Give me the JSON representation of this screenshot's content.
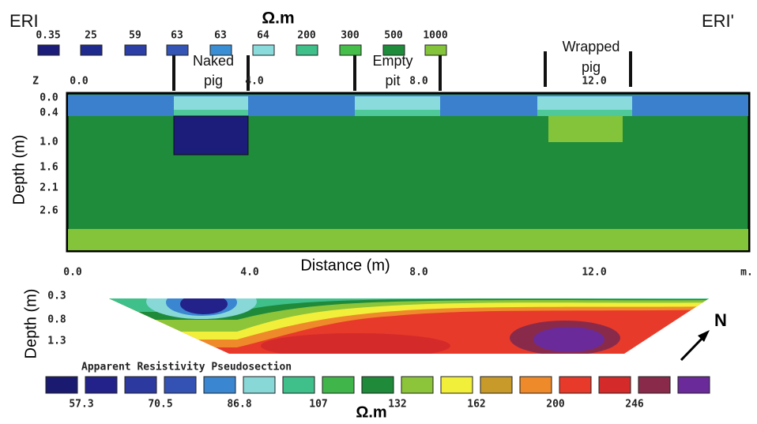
{
  "figure": {
    "left_label": "ERI",
    "right_label": "ERI'",
    "top_unit": "Ω.m",
    "top_legend": {
      "labels": [
        "0.35",
        "25",
        "59",
        "63",
        "63",
        "64",
        "200",
        "300",
        "500",
        "1000"
      ],
      "colors": [
        "#1c1c7a",
        "#1f2a8f",
        "#2b3fa6",
        "#3455b5",
        "#3a8fd4",
        "#8adcdc",
        "#3fbf8a",
        "#46bf4a",
        "#1e8c3a",
        "#84c43a"
      ]
    },
    "annotations": [
      {
        "line1": "Naked",
        "line2": "pig"
      },
      {
        "line1": "Empty",
        "line2": "pit"
      },
      {
        "line1": "Wrapped",
        "line2": "pig"
      }
    ],
    "model": {
      "z_label": "Z",
      "x_labels": [
        "0.0",
        "4.0",
        "8.0",
        "12.0"
      ],
      "depth_labels": [
        "0.0",
        "0.4",
        "1.0",
        "1.6",
        "2.1",
        "2.6"
      ],
      "y_title": "Depth (m)",
      "x_title": "Distance (m)"
    },
    "pseudosection": {
      "x_labels": [
        "0.0",
        "4.0",
        "8.0",
        "12.0"
      ],
      "x_unit": "m.",
      "depth_labels": [
        "0.3",
        "0.8",
        "1.3"
      ],
      "y_title": "Depth (m)",
      "north": "N",
      "title": "Apparent Resistivity Pseudosection",
      "legend_colors": [
        "#1a1a70",
        "#22228a",
        "#2c3aa0",
        "#3352b4",
        "#3a86d0",
        "#88d8d8",
        "#3fbf8a",
        "#3fb54a",
        "#1e8a3a",
        "#8cc43a",
        "#f2ef3a",
        "#c89a2a",
        "#ef8a2a",
        "#e83a2a",
        "#d42a2a",
        "#8a2a4a",
        "#6a2a9a"
      ],
      "legend_labels": [
        "57.3",
        "70.5",
        "86.8",
        "107",
        "132",
        "162",
        "200",
        "246"
      ],
      "unit": "Ω.m"
    }
  }
}
